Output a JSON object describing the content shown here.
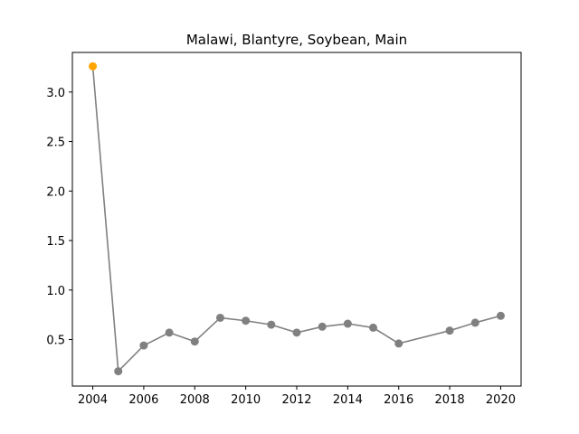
{
  "chart_data": {
    "type": "line",
    "title": "Malawi, Blantyre, Soybean, Main",
    "xlabel": "",
    "ylabel": "",
    "xlim": [
      2003.2,
      2020.8
    ],
    "ylim": [
      0.03,
      3.4
    ],
    "x_ticks": [
      2004,
      2006,
      2008,
      2010,
      2012,
      2014,
      2016,
      2018,
      2020
    ],
    "y_ticks": [
      0.5,
      1.0,
      1.5,
      2.0,
      2.5,
      3.0
    ],
    "y_tick_labels": [
      "0.5",
      "1.0",
      "1.5",
      "2.0",
      "2.5",
      "3.0"
    ],
    "grid": false,
    "line_color": "#808080",
    "highlight_color": "#FFA500",
    "series": [
      {
        "x": [
          2004,
          2005,
          2006,
          2007,
          2008,
          2009,
          2010,
          2011,
          2012,
          2013,
          2014,
          2015,
          2016,
          2018,
          2019,
          2020
        ],
        "y": [
          3.26,
          0.18,
          0.44,
          0.57,
          0.48,
          0.72,
          0.69,
          0.65,
          0.57,
          0.63,
          0.66,
          0.62,
          0.46,
          0.59,
          0.67,
          0.74
        ],
        "highlight_index": [
          0
        ]
      }
    ]
  }
}
